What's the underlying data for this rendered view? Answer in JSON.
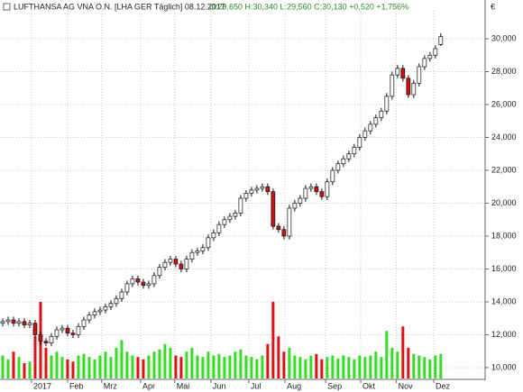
{
  "header": {
    "title": "LUFTHANSA AG VNA O.N. [LHA GER  Täglich] 08.12.2017",
    "quote": "O:29,650 H:30,340 L:29,560 C:30,130 +0,520 +1,756%"
  },
  "chart_data": {
    "type": "candlestick",
    "y_unit": "€",
    "open": [
      12.7,
      12.8,
      12.9,
      12.7,
      12.8,
      12.6,
      12.7,
      12.0,
      11.6,
      11.5,
      11.9,
      12.3,
      12.4,
      12.1,
      12.0,
      12.5,
      12.9,
      13.2,
      13.4,
      13.5,
      13.7,
      13.9,
      14.2,
      14.6,
      15.1,
      15.4,
      15.2,
      15.0,
      15.1,
      15.6,
      16.1,
      16.4,
      16.6,
      16.3,
      16.0,
      16.6,
      17.0,
      17.1,
      17.3,
      17.9,
      18.2,
      18.7,
      19.0,
      19.2,
      19.4,
      20.3,
      20.6,
      20.8,
      20.9,
      21.0,
      20.7,
      18.6,
      18.4,
      18.0,
      19.7,
      20.0,
      20.3,
      20.9,
      21.0,
      20.7,
      20.4,
      21.3,
      22.0,
      22.4,
      22.7,
      23.0,
      23.4,
      24.0,
      24.4,
      24.8,
      25.2,
      25.6,
      26.5,
      27.8,
      28.2,
      27.6,
      26.6,
      27.3,
      28.3,
      28.8,
      29.0,
      29.65
    ],
    "high": [
      13.0,
      13.1,
      13.1,
      13.0,
      13.0,
      12.9,
      12.9,
      12.2,
      11.8,
      12.1,
      12.5,
      12.6,
      12.6,
      12.3,
      12.7,
      13.1,
      13.4,
      13.6,
      13.7,
      13.9,
      14.1,
      14.4,
      14.8,
      15.3,
      15.6,
      15.6,
      15.4,
      15.3,
      15.8,
      16.3,
      16.6,
      16.8,
      16.8,
      16.5,
      16.8,
      17.2,
      17.3,
      17.5,
      18.1,
      18.4,
      18.9,
      19.2,
      19.4,
      19.6,
      20.5,
      20.8,
      21.0,
      21.1,
      21.2,
      21.2,
      20.9,
      18.8,
      18.6,
      19.9,
      20.2,
      20.5,
      21.1,
      21.2,
      21.2,
      20.9,
      21.5,
      22.2,
      22.6,
      22.9,
      23.2,
      23.6,
      24.2,
      24.6,
      25.0,
      25.4,
      25.8,
      26.7,
      28.0,
      28.4,
      28.4,
      27.8,
      27.5,
      28.5,
      29.0,
      29.2,
      29.6,
      30.34
    ],
    "low": [
      12.5,
      12.6,
      12.5,
      12.5,
      12.4,
      12.4,
      11.8,
      11.4,
      11.3,
      11.3,
      11.7,
      12.1,
      11.9,
      11.8,
      11.8,
      12.3,
      12.7,
      13.0,
      13.2,
      13.3,
      13.5,
      13.7,
      14.0,
      14.4,
      14.9,
      15.0,
      14.8,
      14.8,
      14.9,
      15.4,
      15.9,
      16.2,
      16.1,
      15.8,
      15.8,
      16.4,
      16.8,
      16.9,
      17.1,
      17.7,
      18.0,
      18.5,
      18.8,
      19.0,
      19.2,
      20.1,
      20.4,
      20.6,
      20.7,
      20.5,
      18.4,
      18.2,
      17.8,
      17.8,
      19.5,
      19.8,
      20.1,
      20.7,
      20.5,
      20.2,
      20.2,
      21.1,
      21.8,
      22.2,
      22.5,
      22.8,
      23.2,
      23.8,
      24.2,
      24.6,
      25.0,
      25.4,
      26.3,
      27.6,
      27.4,
      26.4,
      26.4,
      27.1,
      28.1,
      28.6,
      28.8,
      29.56
    ],
    "close": [
      12.8,
      12.9,
      12.7,
      12.8,
      12.6,
      12.7,
      12.0,
      11.6,
      11.5,
      11.9,
      12.3,
      12.4,
      12.1,
      12.0,
      12.5,
      12.9,
      13.2,
      13.4,
      13.5,
      13.7,
      13.9,
      14.2,
      14.6,
      15.1,
      15.4,
      15.2,
      15.0,
      15.1,
      15.6,
      16.1,
      16.4,
      16.6,
      16.3,
      16.0,
      16.6,
      17.0,
      17.1,
      17.3,
      17.9,
      18.2,
      18.7,
      19.0,
      19.2,
      19.4,
      20.3,
      20.6,
      20.8,
      20.9,
      21.0,
      20.7,
      18.6,
      18.4,
      18.0,
      19.7,
      20.0,
      20.3,
      20.9,
      21.0,
      20.7,
      20.4,
      21.3,
      22.0,
      22.4,
      22.7,
      23.0,
      23.4,
      24.0,
      24.4,
      24.8,
      25.2,
      25.6,
      26.5,
      27.8,
      28.2,
      27.6,
      26.6,
      27.3,
      28.3,
      28.8,
      29.0,
      29.4,
      30.13
    ],
    "volume": [
      30,
      25,
      35,
      28,
      20,
      22,
      55,
      100,
      40,
      30,
      35,
      28,
      25,
      22,
      30,
      32,
      28,
      25,
      30,
      35,
      28,
      40,
      50,
      35,
      30,
      28,
      25,
      30,
      35,
      38,
      45,
      40,
      30,
      28,
      35,
      40,
      30,
      28,
      35,
      30,
      32,
      28,
      30,
      35,
      38,
      30,
      28,
      25,
      30,
      45,
      100,
      55,
      35,
      40,
      30,
      28,
      25,
      30,
      32,
      25,
      28,
      30,
      26,
      30,
      28,
      25,
      30,
      28,
      30,
      35,
      28,
      62,
      40,
      35,
      68,
      40,
      32,
      30,
      28,
      25,
      30,
      32
    ],
    "up_color": "#ffffff",
    "down_color": "#cc1111",
    "volume_up_color": "#33dd22",
    "volume_down_color": "#dd1111",
    "ylim": [
      9.34,
      31.7
    ],
    "yticks": [
      {
        "value": 10,
        "label": "10,000"
      },
      {
        "value": 12,
        "label": "12,000"
      },
      {
        "value": 14,
        "label": "14,000"
      },
      {
        "value": 16,
        "label": "16,000"
      },
      {
        "value": 18,
        "label": "18,000"
      },
      {
        "value": 20,
        "label": "20,000"
      },
      {
        "value": 22,
        "label": "22,000"
      },
      {
        "value": 24,
        "label": "24,000"
      },
      {
        "value": 26,
        "label": "26,000"
      },
      {
        "value": 28,
        "label": "28,000"
      },
      {
        "value": 30,
        "label": "30,000"
      }
    ],
    "y2lim": [
      0,
      100
    ],
    "xlim": [
      -0.5,
      89.2
    ],
    "xticks": [
      {
        "value": 5.33,
        "label": "2017"
      },
      {
        "value": 12,
        "label": "Feb"
      },
      {
        "value": 18.3,
        "label": "Mrz"
      },
      {
        "value": 25.5,
        "label": "Apr"
      },
      {
        "value": 31.8,
        "label": "Mai"
      },
      {
        "value": 38.5,
        "label": "Jun"
      },
      {
        "value": 45.5,
        "label": "Jul"
      },
      {
        "value": 52.2,
        "label": "Aug"
      },
      {
        "value": 59.7,
        "label": "Sep"
      },
      {
        "value": 66.2,
        "label": "Okt"
      },
      {
        "value": 72.8,
        "label": "Nov"
      },
      {
        "value": 79.7,
        "label": "Dez"
      }
    ],
    "grid": true
  }
}
